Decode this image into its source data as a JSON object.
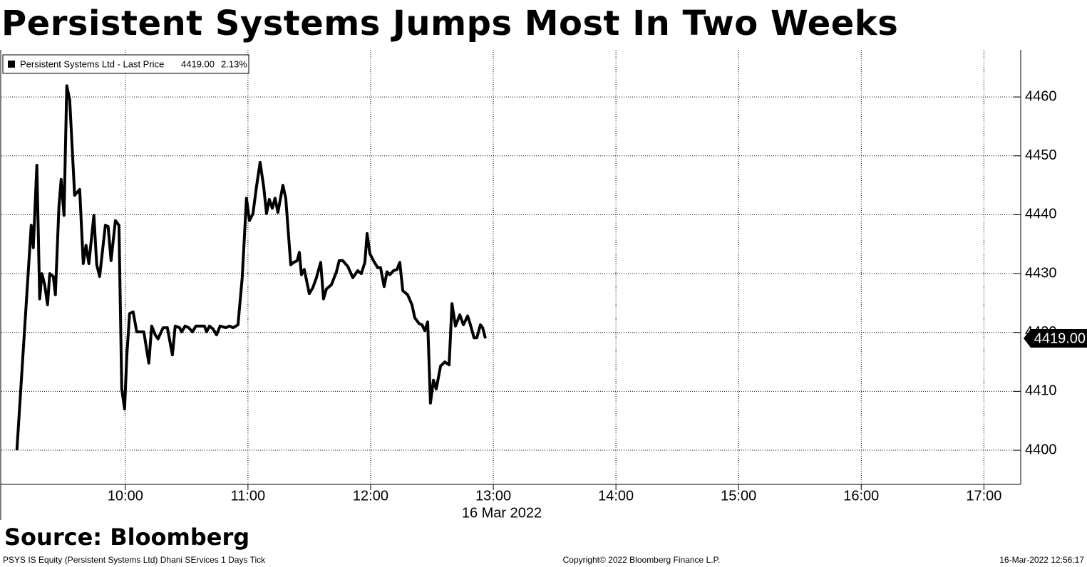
{
  "chart_data": {
    "type": "line",
    "title": "Persistent Systems Jumps Most In Two Weeks",
    "source": "Source: Bloomberg",
    "x_label": "16 Mar 2022",
    "footer_left": "PSYS IS Equity (Persistent Systems Ltd) Dhani SErvices 1 Days  Tick",
    "footer_center": "Copyright© 2022 Bloomberg Finance L.P.",
    "footer_right": "16-Mar-2022 12:56:17",
    "last_price": {
      "value": 4419,
      "label": "4419.00"
    },
    "change": {
      "value": 2.13,
      "label": "2.13%"
    },
    "xlim": [
      8.99,
      17.3
    ],
    "xticks": [
      {
        "value": 10,
        "label": "10:00"
      },
      {
        "value": 11,
        "label": "11:00"
      },
      {
        "value": 12,
        "label": "12:00"
      },
      {
        "value": 13,
        "label": "13:00"
      },
      {
        "value": 14,
        "label": "14:00"
      },
      {
        "value": 15,
        "label": "15:00"
      },
      {
        "value": 16,
        "label": "16:00"
      },
      {
        "value": 17,
        "label": "17:00"
      }
    ],
    "ylim": [
      4394.2,
      4468
    ],
    "yticks": [
      4400,
      4410,
      4420,
      4430,
      4440,
      4450,
      4460
    ],
    "grid": true,
    "x": [
      9.116,
      9.233,
      9.25,
      9.279,
      9.302,
      9.32,
      9.343,
      9.366,
      9.384,
      9.413,
      9.43,
      9.459,
      9.477,
      9.5,
      9.523,
      9.547,
      9.587,
      9.628,
      9.657,
      9.68,
      9.703,
      9.744,
      9.767,
      9.791,
      9.837,
      9.86,
      9.884,
      9.919,
      9.948,
      9.971,
      9.994,
      10.012,
      10.035,
      10.064,
      10.093,
      10.151,
      10.192,
      10.215,
      10.244,
      10.267,
      10.308,
      10.343,
      10.384,
      10.407,
      10.442,
      10.459,
      10.488,
      10.517,
      10.547,
      10.576,
      10.645,
      10.663,
      10.686,
      10.715,
      10.744,
      10.773,
      10.82,
      10.849,
      10.878,
      10.919,
      10.953,
      10.988,
      11.012,
      11.041,
      11.07,
      11.099,
      11.128,
      11.151,
      11.174,
      11.198,
      11.221,
      11.244,
      11.285,
      11.308,
      11.349,
      11.372,
      11.401,
      11.419,
      11.436,
      11.459,
      11.5,
      11.529,
      11.558,
      11.593,
      11.616,
      11.64,
      11.68,
      11.721,
      11.744,
      11.773,
      11.814,
      11.855,
      11.895,
      11.924,
      11.953,
      11.971,
      11.994,
      12.023,
      12.058,
      12.081,
      12.11,
      12.134,
      12.157,
      12.186,
      12.215,
      12.238,
      12.262,
      12.302,
      12.337,
      12.36,
      12.395,
      12.419,
      12.442,
      12.465,
      12.488,
      12.512,
      12.535,
      12.57,
      12.605,
      12.64,
      12.663,
      12.692,
      12.727,
      12.756,
      12.791,
      12.814,
      12.843,
      12.866,
      12.895,
      12.913,
      12.936
    ],
    "series": [
      {
        "name": "Persistent Systems Ltd - Last Price",
        "color": "#000000",
        "values": [
          4400,
          4438.2,
          4434.4,
          4448.4,
          4425.7,
          4430,
          4428.1,
          4424.7,
          4430,
          4429.5,
          4426.4,
          4441.4,
          4446,
          4439.9,
          4461.9,
          4459.5,
          4443.3,
          4444.3,
          4431.7,
          4434.8,
          4431.7,
          4439.9,
          4431.5,
          4429.5,
          4438.2,
          4438,
          4432.2,
          4439,
          4438.2,
          4410.4,
          4407,
          4416,
          4423.2,
          4423.5,
          4420.1,
          4420.1,
          4414.8,
          4421.1,
          4419.6,
          4418.9,
          4420.8,
          4420.8,
          4416.2,
          4421.1,
          4420.8,
          4420.1,
          4421.1,
          4420.8,
          4420.1,
          4421.1,
          4421.1,
          4420.1,
          4421.1,
          4420.6,
          4419.6,
          4421.1,
          4420.8,
          4421.1,
          4420.8,
          4421.3,
          4429.3,
          4442.8,
          4439,
          4440.2,
          4444.8,
          4448.9,
          4444.8,
          4440.2,
          4442.6,
          4441.1,
          4442.8,
          4440.4,
          4445,
          4442.8,
          4431.5,
          4431.9,
          4432.2,
          4433.6,
          4429.8,
          4430.7,
          4426.6,
          4427.6,
          4429.3,
          4431.9,
          4425.7,
          4427.4,
          4428.1,
          4430.3,
          4432.2,
          4432.2,
          4431.2,
          4429.3,
          4430.5,
          4430,
          4431.9,
          4436.8,
          4433.4,
          4432.2,
          4431,
          4431,
          4427.8,
          4430.3,
          4429.8,
          4430.5,
          4430.7,
          4431.9,
          4427.1,
          4426.4,
          4424.7,
          4422.5,
          4421.5,
          4421.3,
          4420.3,
          4421.8,
          4408,
          4411.9,
          4410.4,
          4414.3,
          4415,
          4414.5,
          4424.9,
          4421.1,
          4423,
          4421.3,
          4422.8,
          4421.3,
          4419.1,
          4419.1,
          4421.3,
          4420.8,
          4419
        ]
      }
    ]
  }
}
